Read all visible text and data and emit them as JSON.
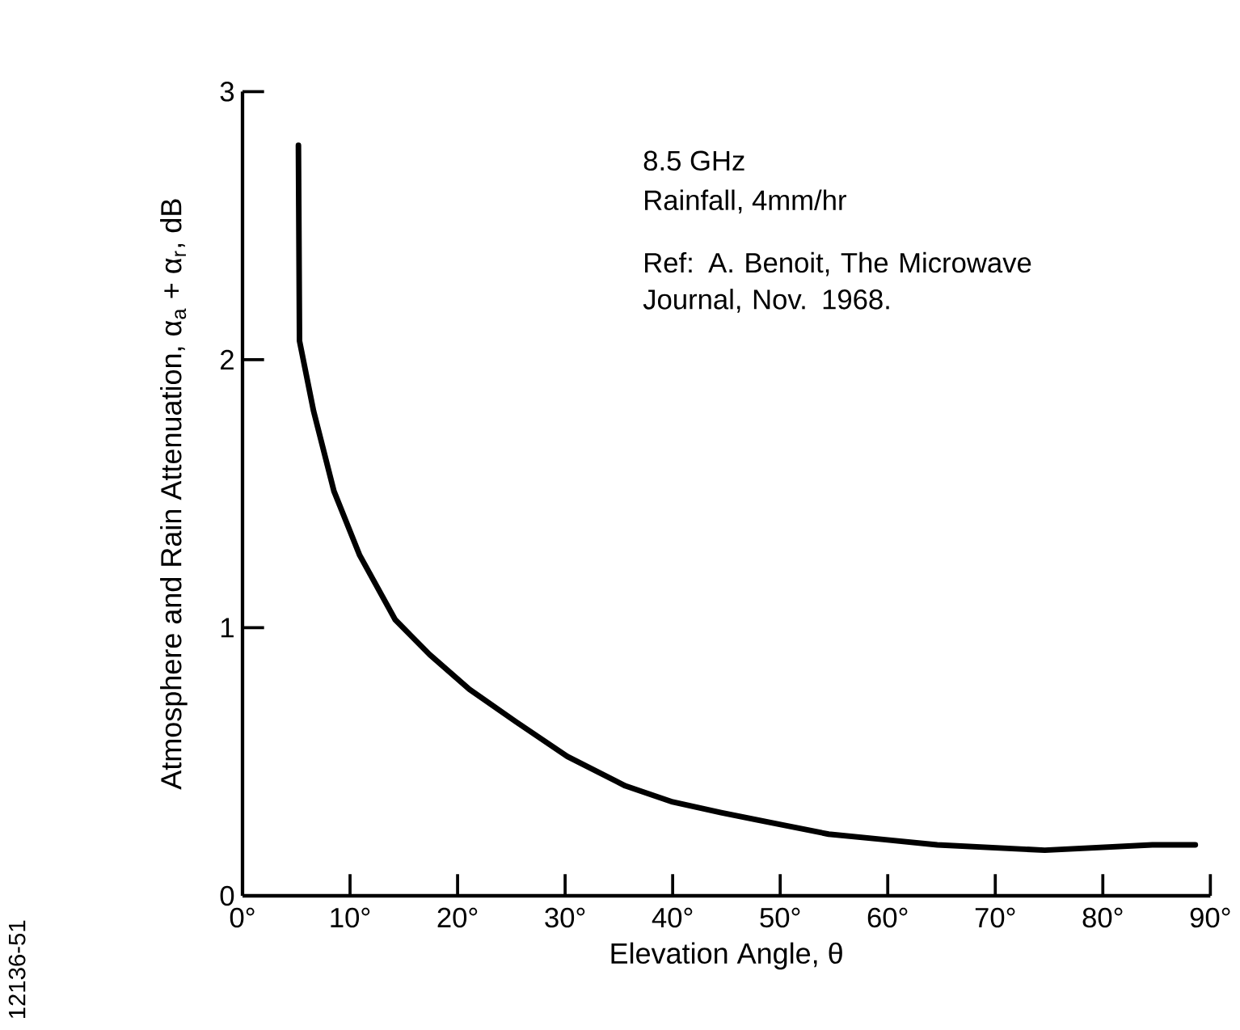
{
  "chart_data": {
    "type": "line",
    "xlabel": "Elevation Angle, θ",
    "ylabel": "Atmosphere and Rain Attenuation,  α$_{a}$ + α$_{r}$, dB",
    "annotations": [
      "8.5 GHz",
      "Rainfall, 4mm/hr",
      "Ref:  A. Benoit, The Microwave Journal, Nov. 1968.",
      "12136-51"
    ],
    "xlim": [
      0,
      90
    ],
    "ylim": [
      0,
      3
    ],
    "xticks": [
      {
        "value": 0,
        "label": "0°"
      },
      {
        "value": 10,
        "label": "10°"
      },
      {
        "value": 20,
        "label": "20°"
      },
      {
        "value": 30,
        "label": "30°"
      },
      {
        "value": 40,
        "label": "40°"
      },
      {
        "value": 50,
        "label": "50°"
      },
      {
        "value": 60,
        "label": "60°"
      },
      {
        "value": 70,
        "label": "70°"
      },
      {
        "value": 80,
        "label": "80°"
      },
      {
        "value": 90,
        "label": "90°"
      }
    ],
    "yticks": [
      0,
      1,
      2,
      3
    ],
    "marker": "none",
    "line_style": "solid",
    "series": [
      {
        "color": "#000000",
        "x": [
          5.2,
          5.3,
          6.6,
          8.5,
          10.9,
          14.2,
          17.4,
          21.1,
          25.4,
          30.2,
          35.6,
          40,
          44.5,
          49.5,
          54.5,
          59.6,
          64.6,
          69.6,
          74.6,
          79.6,
          84.6,
          88.6
        ],
        "values": [
          2.8,
          2.07,
          1.81,
          1.51,
          1.27,
          1.03,
          0.9,
          0.77,
          0.65,
          0.52,
          0.41,
          0.35,
          0.31,
          0.27,
          0.23,
          0.21,
          0.19,
          0.18,
          0.17,
          0.18,
          0.19,
          0.19
        ]
      }
    ]
  }
}
